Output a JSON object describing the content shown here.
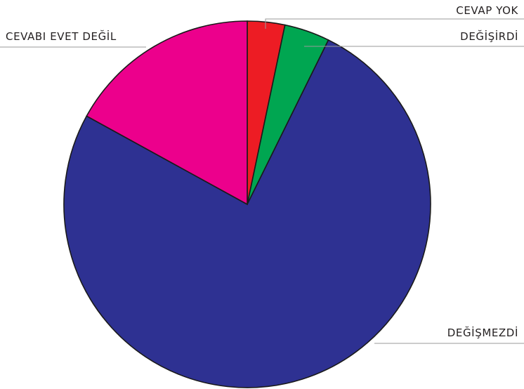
{
  "chart_data": {
    "type": "pie",
    "title": "",
    "start": "top",
    "direction": "clockwise",
    "slices": [
      {
        "label": "CEVAP YOK",
        "value": 3.3,
        "color": "#ed1c24"
      },
      {
        "label": "DEĞİŞİRDİ",
        "value": 4.0,
        "color": "#00a651"
      },
      {
        "label": "DEĞİŞMEZDİ",
        "value": 75.7,
        "color": "#2e3192"
      },
      {
        "label": "CEVABI EVET DEĞİL",
        "value": 17.0,
        "color": "#ec008c"
      }
    ]
  }
}
